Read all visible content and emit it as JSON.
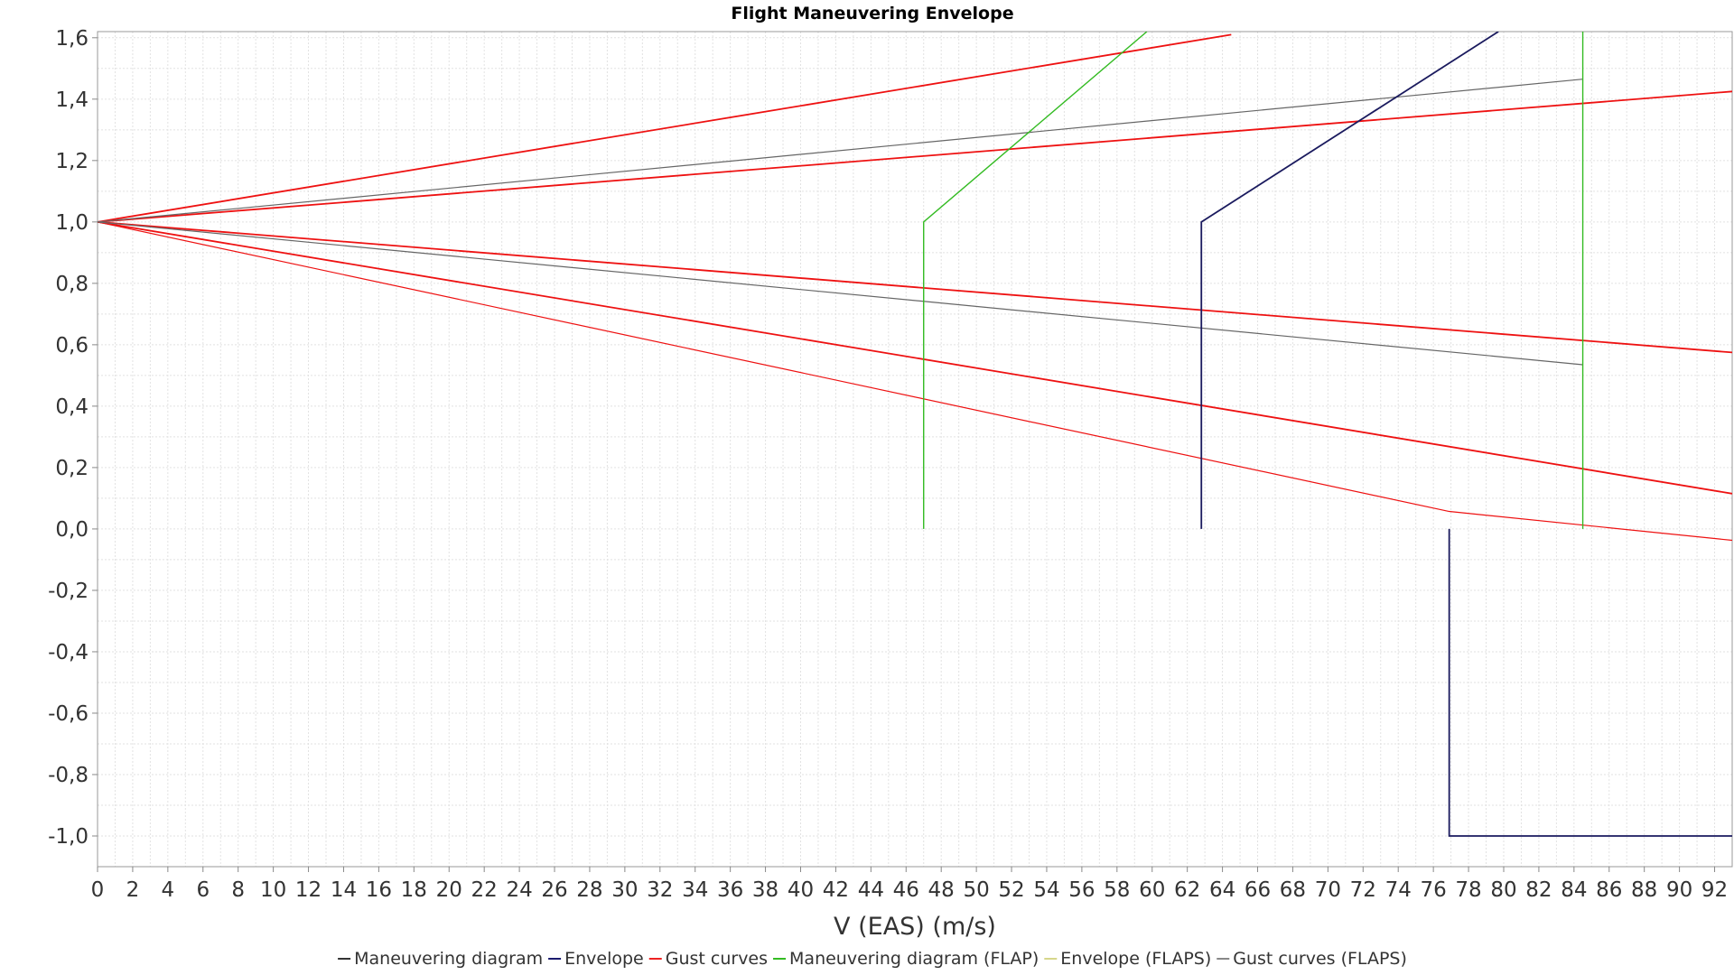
{
  "chart_data": {
    "type": "line",
    "title": "Flight Maneuvering Envelope",
    "xlabel": "V (EAS) (m/s)",
    "ylabel": "",
    "xlim": [
      0,
      93
    ],
    "ylim": [
      -1.1,
      1.62
    ],
    "grid": true,
    "legend_position": "bottom",
    "x_ticks": [
      "0",
      "2",
      "4",
      "6",
      "8",
      "10",
      "12",
      "14",
      "16",
      "18",
      "20",
      "22",
      "24",
      "26",
      "28",
      "30",
      "32",
      "34",
      "36",
      "38",
      "40",
      "42",
      "44",
      "46",
      "48",
      "50",
      "52",
      "54",
      "56",
      "58",
      "60",
      "62",
      "64",
      "66",
      "68",
      "70",
      "72",
      "74",
      "76",
      "78",
      "80",
      "82",
      "84",
      "86",
      "88",
      "90",
      "92"
    ],
    "y_ticks": [
      "1,6",
      "1,4",
      "1,2",
      "1,0",
      "0,8",
      "0,6",
      "0,4",
      "0,2",
      "0,0",
      "-0,2",
      "-0,4",
      "-0,6",
      "-0,8",
      "-1,0"
    ],
    "legend": [
      {
        "label": "Maneuvering diagram",
        "color": "#333333"
      },
      {
        "label": "Envelope",
        "color": "#1a1a6e"
      },
      {
        "label": "Gust curves",
        "color": "#ee2222"
      },
      {
        "label": "Maneuvering diagram (FLAP)",
        "color": "#33bb22"
      },
      {
        "label": "Envelope (FLAPS)",
        "color": "#d6d68a"
      },
      {
        "label": "Gust curves (FLAPS)",
        "color": "#888888"
      }
    ],
    "series": [
      {
        "legend": "Gust curves",
        "color": "#ee1111",
        "width": 1.8,
        "points": [
          [
            0,
            1.0
          ],
          [
            64.5,
            1.61
          ]
        ]
      },
      {
        "legend": "Gust curves",
        "color": "#ee1111",
        "width": 1.8,
        "points": [
          [
            0,
            1.0
          ],
          [
            93,
            1.425
          ]
        ]
      },
      {
        "legend": "Gust curves",
        "color": "#ee1111",
        "width": 1.8,
        "points": [
          [
            0,
            1.0
          ],
          [
            93,
            0.575
          ]
        ]
      },
      {
        "legend": "Gust curves",
        "color": "#ee1111",
        "width": 1.8,
        "points": [
          [
            0,
            1.0
          ],
          [
            93,
            0.115
          ]
        ]
      },
      {
        "legend": "Gust curves",
        "color": "#ee1111",
        "width": 1.2,
        "points": [
          [
            0,
            1.0
          ],
          [
            76.9,
            0.057
          ],
          [
            93,
            -0.037
          ]
        ]
      },
      {
        "legend": "Gust curves (FLAPS)",
        "color": "#666666",
        "width": 1.2,
        "points": [
          [
            0,
            1.0
          ],
          [
            84.5,
            1.465
          ]
        ]
      },
      {
        "legend": "Gust curves (FLAPS)",
        "color": "#666666",
        "width": 1.2,
        "points": [
          [
            0,
            1.0
          ],
          [
            84.5,
            0.535
          ]
        ]
      },
      {
        "legend": "Maneuvering diagram (FLAP)",
        "color": "#33bb22",
        "width": 1.4,
        "points": [
          [
            47,
            0.0
          ],
          [
            47,
            1.0
          ],
          [
            59.7,
            1.62
          ]
        ]
      },
      {
        "legend": "Maneuvering diagram (FLAP)",
        "color": "#33bb22",
        "width": 1.4,
        "points": [
          [
            84.5,
            0.0
          ],
          [
            84.5,
            1.62
          ]
        ]
      },
      {
        "legend": "Envelope",
        "color": "#1a1a5e",
        "width": 1.8,
        "points": [
          [
            62.8,
            0.0
          ],
          [
            62.8,
            1.0
          ],
          [
            79.7,
            1.62
          ]
        ]
      },
      {
        "legend": "Envelope",
        "color": "#1a1a5e",
        "width": 1.8,
        "points": [
          [
            76.9,
            0.0
          ],
          [
            76.9,
            -1.0
          ],
          [
            93,
            -1.0
          ]
        ]
      }
    ]
  }
}
